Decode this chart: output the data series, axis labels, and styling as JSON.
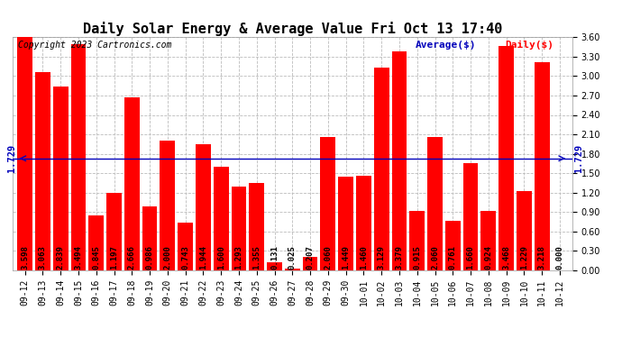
{
  "title": "Daily Solar Energy & Average Value Fri Oct 13 17:40",
  "copyright": "Copyright 2023 Cartronics.com",
  "legend_avg": "Average($)",
  "legend_daily": "Daily($)",
  "average_value": 1.729,
  "categories": [
    "09-12",
    "09-13",
    "09-14",
    "09-15",
    "09-16",
    "09-17",
    "09-18",
    "09-19",
    "09-20",
    "09-21",
    "09-22",
    "09-23",
    "09-24",
    "09-25",
    "09-26",
    "09-27",
    "09-28",
    "09-29",
    "09-30",
    "10-01",
    "10-02",
    "10-03",
    "10-04",
    "10-05",
    "10-06",
    "10-07",
    "10-08",
    "10-09",
    "10-10",
    "10-11",
    "10-12"
  ],
  "values": [
    3.598,
    3.063,
    2.839,
    3.494,
    0.845,
    1.197,
    2.666,
    0.986,
    2.0,
    0.743,
    1.944,
    1.6,
    1.293,
    1.355,
    0.131,
    0.025,
    0.207,
    2.06,
    1.449,
    1.46,
    3.129,
    3.379,
    0.915,
    2.06,
    0.761,
    1.66,
    0.924,
    3.468,
    1.229,
    3.218,
    0.0
  ],
  "bar_color": "#ff0000",
  "avg_line_color": "#0000bb",
  "avg_label_color": "#0000bb",
  "title_color": "#000000",
  "copyright_color": "#000000",
  "legend_avg_color": "#0000bb",
  "legend_daily_color": "#ff0000",
  "bar_label_color": "#000000",
  "ylim": [
    0.0,
    3.6
  ],
  "yticks": [
    0.0,
    0.3,
    0.6,
    0.9,
    1.2,
    1.5,
    1.8,
    2.1,
    2.4,
    2.7,
    3.0,
    3.3,
    3.6
  ],
  "grid_color": "#bbbbbb",
  "bg_color": "#ffffff",
  "title_fontsize": 11,
  "copyright_fontsize": 7,
  "bar_label_fontsize": 6.5,
  "tick_fontsize": 7,
  "avg_fontsize": 7.5,
  "legend_fontsize": 8
}
